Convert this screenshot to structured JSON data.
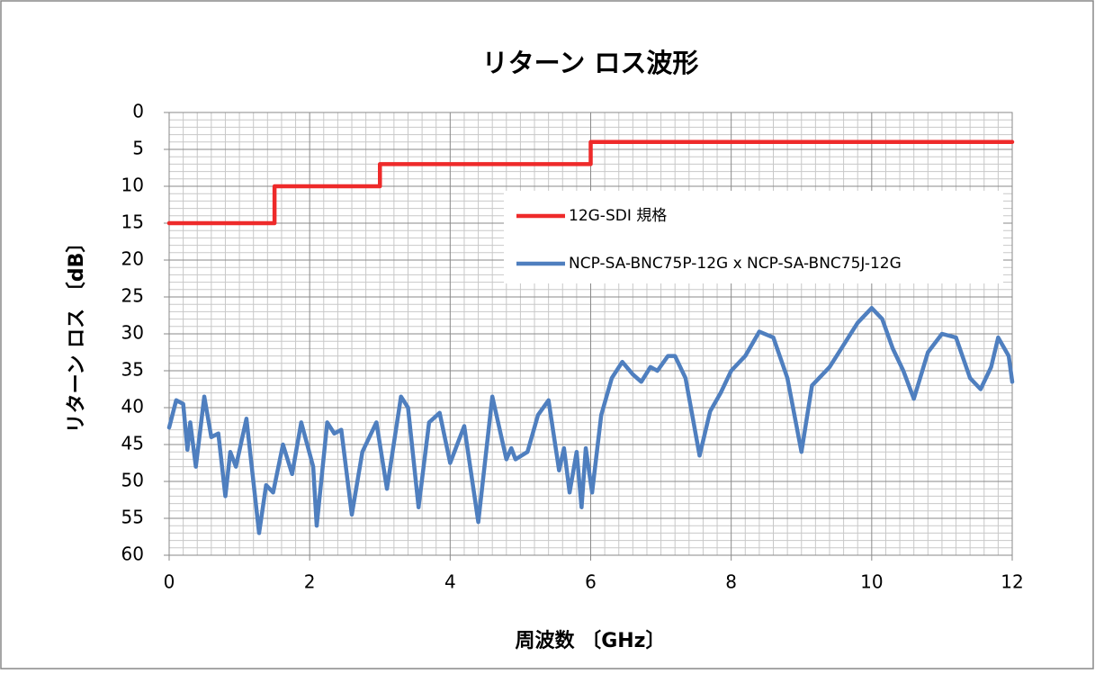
{
  "chart_data": {
    "type": "line",
    "title": "リターン ロス波形",
    "xlabel": "周波数 〔GHz〕",
    "ylabel": "リターン ロス 〔dB〕",
    "xlim": [
      0,
      12
    ],
    "xticks": [
      0,
      2,
      4,
      6,
      8,
      10,
      12
    ],
    "ylim": [
      0,
      60
    ],
    "yticks": [
      0,
      5,
      10,
      15,
      20,
      25,
      30,
      35,
      40,
      45,
      50,
      55,
      60
    ],
    "y_reversed": true,
    "grid": true,
    "minor_grid": true,
    "legend": "upper-right",
    "series": [
      {
        "name": "12G-SDI 規格",
        "color": "#ee2a2a",
        "x": [
          0,
          1.5,
          1.5,
          3,
          3,
          6,
          6,
          12
        ],
        "values": [
          15,
          15,
          10,
          10,
          7,
          7,
          4,
          4
        ]
      },
      {
        "name": "NCP-SA-BNC75P-12G x NCP-SA-BNC75J-12G",
        "color": "#4f7fbf",
        "x": [
          0,
          0.1,
          0.2,
          0.26,
          0.3,
          0.38,
          0.5,
          0.6,
          0.7,
          0.8,
          0.87,
          0.95,
          1.1,
          1.28,
          1.38,
          1.48,
          1.62,
          1.75,
          1.88,
          2.05,
          2.1,
          2.25,
          2.35,
          2.45,
          2.6,
          2.75,
          2.95,
          3.1,
          3.3,
          3.4,
          3.55,
          3.7,
          3.85,
          4.0,
          4.2,
          4.4,
          4.6,
          4.8,
          4.87,
          4.93,
          5.1,
          5.25,
          5.4,
          5.55,
          5.62,
          5.7,
          5.8,
          5.87,
          5.93,
          6.02,
          6.15,
          6.3,
          6.45,
          6.6,
          6.72,
          6.85,
          6.95,
          7.1,
          7.2,
          7.35,
          7.55,
          7.7,
          7.85,
          8.0,
          8.2,
          8.4,
          8.6,
          8.8,
          9.0,
          9.15,
          9.4,
          9.6,
          9.8,
          10.0,
          10.15,
          10.3,
          10.45,
          10.6,
          10.8,
          11.0,
          11.2,
          11.4,
          11.55,
          11.7,
          11.8,
          11.95,
          12.0
        ],
        "values": [
          42.7,
          39,
          39.5,
          45.7,
          42,
          48,
          38.5,
          44,
          43.5,
          52,
          46,
          48,
          41.5,
          57,
          50.5,
          51.5,
          45,
          49,
          42,
          48,
          56,
          42,
          43.5,
          43,
          54.5,
          46,
          42,
          51,
          38.5,
          40,
          53.5,
          42,
          40.7,
          47.5,
          42.5,
          55.5,
          38.5,
          47,
          45.5,
          47,
          46,
          41,
          39,
          48.5,
          45.5,
          51.5,
          46,
          53.5,
          45.5,
          51.5,
          41,
          36,
          33.8,
          35.5,
          36.5,
          34.5,
          35,
          33,
          33,
          36,
          46.5,
          40.5,
          38,
          35,
          33,
          29.7,
          30.5,
          36,
          46,
          37,
          34.5,
          31.5,
          28.5,
          26.5,
          28,
          32,
          35,
          38.8,
          32.5,
          30,
          30.5,
          36,
          37.5,
          34.5,
          30.5,
          33,
          36.5
        ]
      }
    ]
  }
}
